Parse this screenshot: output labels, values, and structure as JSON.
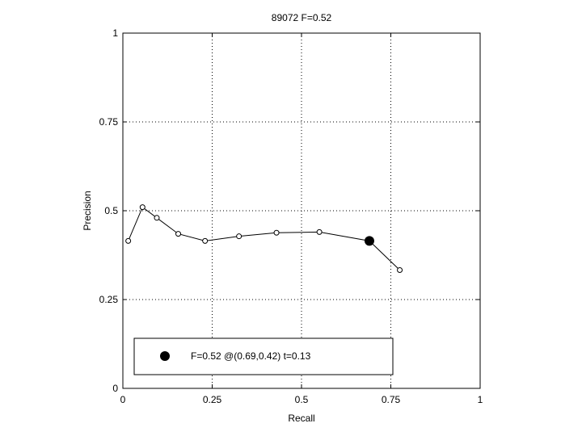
{
  "chart_data": {
    "type": "line",
    "title": "89072 F=0.52",
    "xlabel": "Recall",
    "ylabel": "Precision",
    "xlim": [
      0,
      1
    ],
    "ylim": [
      0,
      1
    ],
    "xticks": [
      "0",
      "0.25",
      "0.5",
      "0.75",
      "1"
    ],
    "yticks": [
      "0",
      "0.25",
      "0.5",
      "0.75",
      "1"
    ],
    "grid": true,
    "legend_position": "bottom",
    "legend_text": "F=0.52 @(0.69,0.42) t=0.13",
    "series": [
      {
        "x": [
          0.015,
          0.055,
          0.095,
          0.155,
          0.23,
          0.325,
          0.43,
          0.55,
          0.69,
          0.775
        ],
        "y": [
          0.415,
          0.51,
          0.48,
          0.435,
          0.415,
          0.428,
          0.438,
          0.44,
          0.415,
          0.333
        ]
      }
    ],
    "highlight_point": {
      "x": 0.69,
      "y": 0.415
    },
    "colors": {
      "line": "#000000",
      "grid": "#000000",
      "background": "#ffffff"
    }
  }
}
